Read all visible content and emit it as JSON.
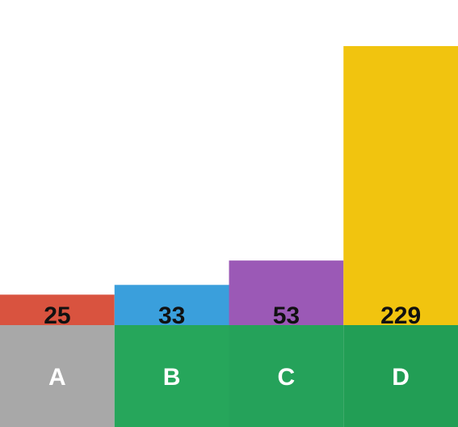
{
  "chart_data": {
    "type": "bar",
    "categories": [
      "A",
      "B",
      "C",
      "D"
    ],
    "values": [
      25,
      33,
      53,
      229
    ],
    "bar_colors": [
      "#d9533f",
      "#3a9fdc",
      "#9b59b6",
      "#f1c40f"
    ],
    "category_tile_colors": [
      "#a8a8a8",
      "#26a65b",
      "#25a25a",
      "#229e55"
    ],
    "ylim": [
      0,
      229
    ],
    "grid": false,
    "legend": "none"
  }
}
